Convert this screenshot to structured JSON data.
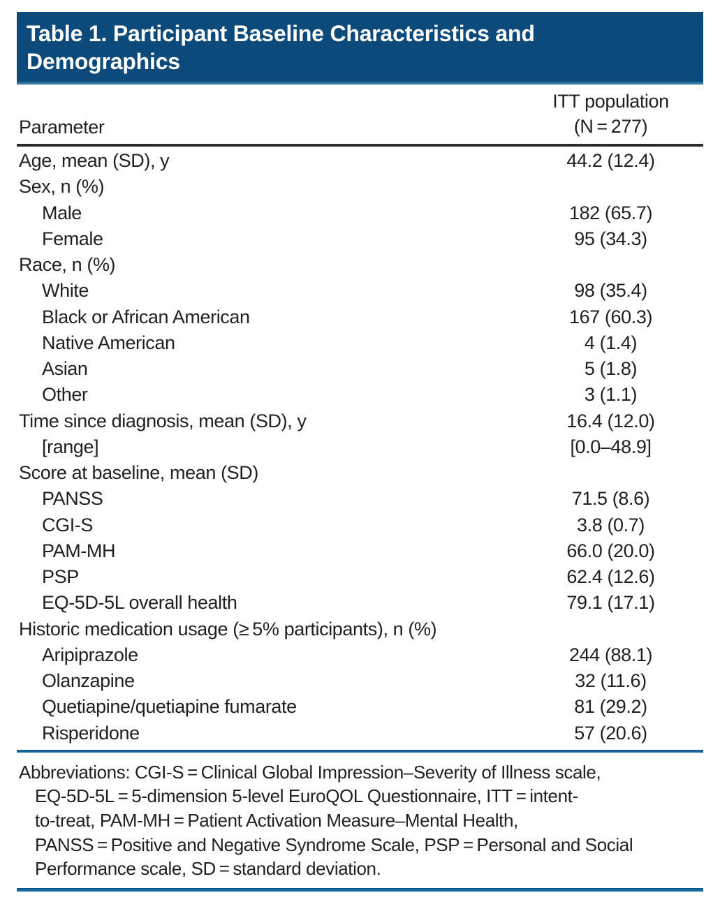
{
  "table": {
    "title": "Table 1. Participant Baseline Characteristics and Demographics",
    "columns": {
      "parameter": "Parameter",
      "population_line1": "ITT population",
      "population_line2": "(N = 277)"
    },
    "rows": [
      {
        "label": "Age, mean (SD), y",
        "value": "44.2 (12.4)",
        "indent": false
      },
      {
        "label": "Sex, n (%)",
        "value": "",
        "indent": false
      },
      {
        "label": "Male",
        "value": "182 (65.7)",
        "indent": true
      },
      {
        "label": "Female",
        "value": "95 (34.3)",
        "indent": true
      },
      {
        "label": "Race, n (%)",
        "value": "",
        "indent": false
      },
      {
        "label": "White",
        "value": "98 (35.4)",
        "indent": true
      },
      {
        "label": "Black or African American",
        "value": "167 (60.3)",
        "indent": true
      },
      {
        "label": "Native American",
        "value": "4 (1.4)",
        "indent": true
      },
      {
        "label": "Asian",
        "value": "5 (1.8)",
        "indent": true
      },
      {
        "label": "Other",
        "value": "3 (1.1)",
        "indent": true
      },
      {
        "label": "Time since diagnosis, mean (SD), y",
        "value": "16.4 (12.0)",
        "indent": false
      },
      {
        "label": "[range]",
        "value": "[0.0–48.9]",
        "indent": true
      },
      {
        "label": "Score at baseline, mean (SD)",
        "value": "",
        "indent": false
      },
      {
        "label": "PANSS",
        "value": "71.5 (8.6)",
        "indent": true
      },
      {
        "label": "CGI-S",
        "value": "3.8 (0.7)",
        "indent": true
      },
      {
        "label": "PAM-MH",
        "value": "66.0 (20.0)",
        "indent": true
      },
      {
        "label": "PSP",
        "value": "62.4 (12.6)",
        "indent": true
      },
      {
        "label": "EQ-5D-5L overall health",
        "value": "79.1 (17.1)",
        "indent": true
      },
      {
        "label": "Historic medication usage (≥ 5% participants), n (%)",
        "value": "",
        "indent": false
      },
      {
        "label": "Aripiprazole",
        "value": "244 (88.1)",
        "indent": true
      },
      {
        "label": "Olanzapine",
        "value": "32 (11.6)",
        "indent": true
      },
      {
        "label": "Quetiapine/quetiapine fumarate",
        "value": "81 (29.2)",
        "indent": true
      },
      {
        "label": "Risperidone",
        "value": "57 (20.6)",
        "indent": true
      }
    ],
    "footnote_lines": [
      {
        "text": "Abbreviations: CGI-S = Clinical Global Impression–Severity of Illness scale,",
        "indent": false
      },
      {
        "text": "EQ-5D-5L = 5-dimension 5-level EuroQOL Questionnaire, ITT = intent-",
        "indent": true
      },
      {
        "text": "to-treat, PAM-MH = Patient Activation Measure–Mental Health,",
        "indent": true
      },
      {
        "text": "PANSS = Positive and Negative Syndrome Scale, PSP = Personal and Social",
        "indent": true
      },
      {
        "text": "Performance scale, SD = standard deviation.",
        "indent": true
      }
    ]
  },
  "colors": {
    "header_bg": "#0b4a7a",
    "rule_blue": "#186a9e",
    "rule_dark": "#2d2b2c",
    "text": "#231f20"
  }
}
